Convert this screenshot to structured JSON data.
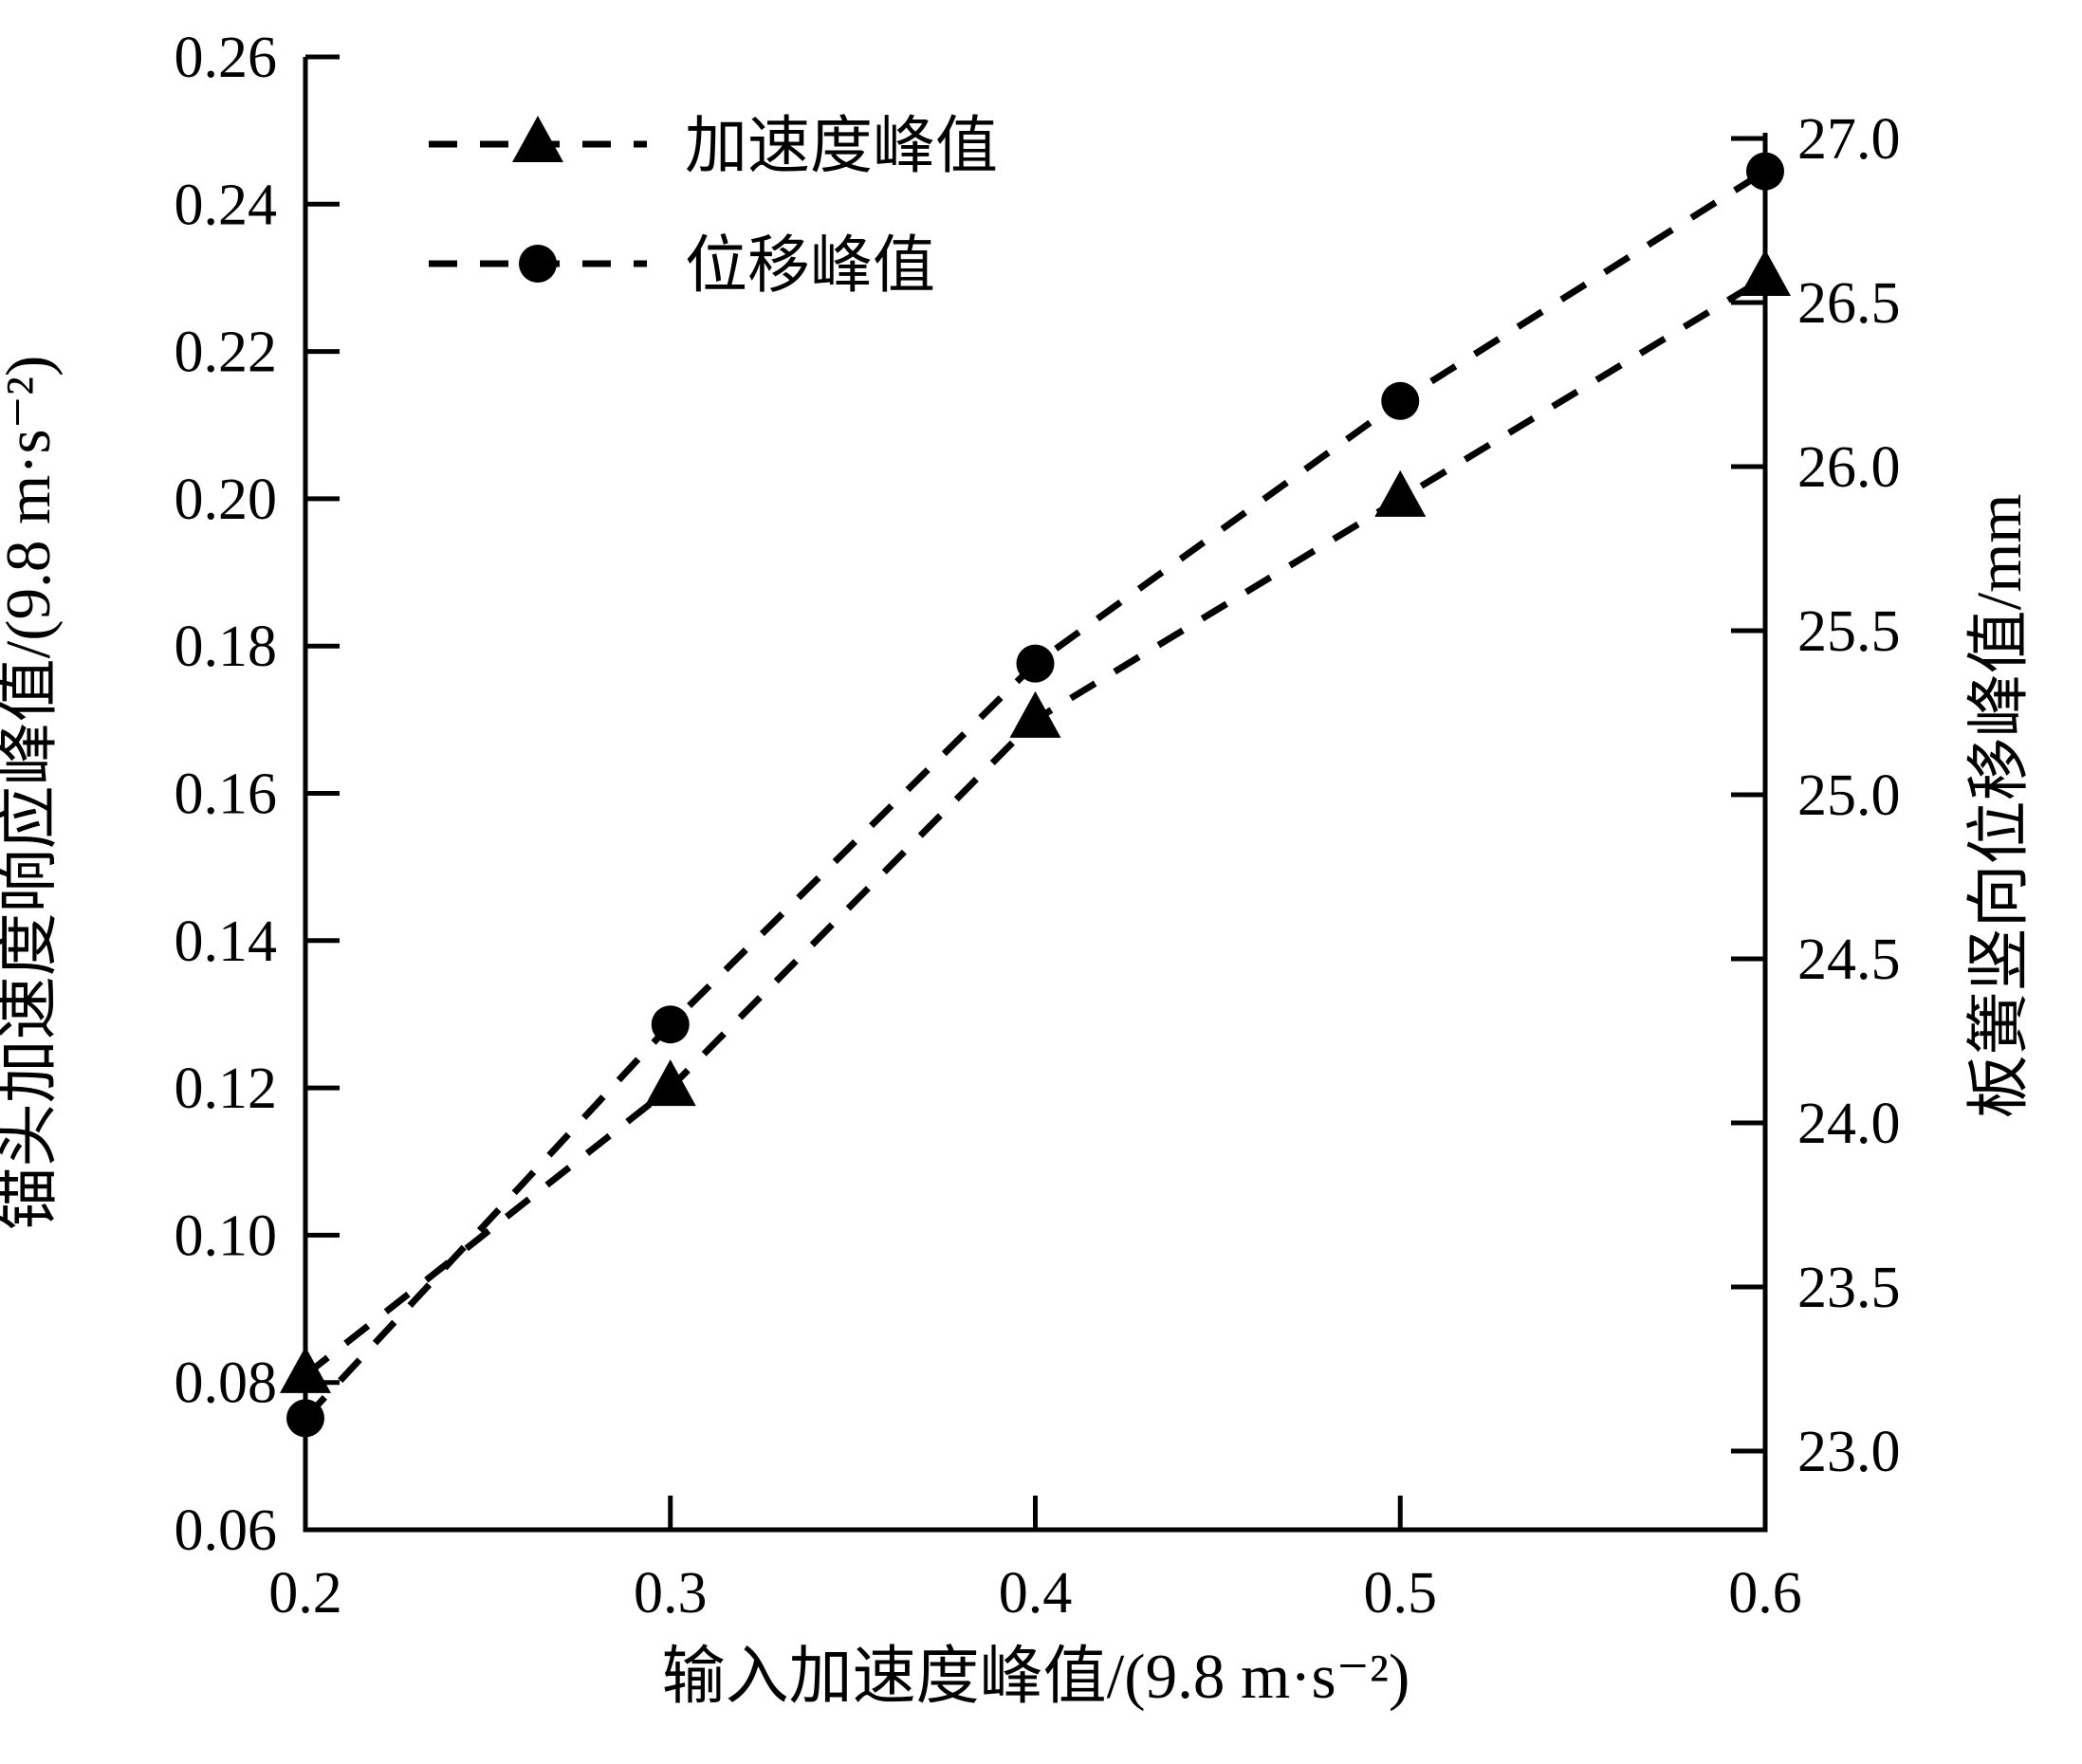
{
  "figure": {
    "background": "#ffffff",
    "ink_color": "#000000"
  },
  "chart_data": {
    "type": "line",
    "x": [
      0.2,
      0.3,
      0.4,
      0.5,
      0.6
    ],
    "x_tick_labels": [
      "0.2",
      "0.3",
      "0.4",
      "0.5",
      "0.6"
    ],
    "xlabel": "输入加速度峰值/(9.8 m·s⁻²)",
    "left_axis": {
      "label": "锚头加速度响应峰值/(9.8 m·s⁻²)",
      "range": [
        0.06,
        0.26
      ],
      "tick_values": [
        0.06,
        0.08,
        0.1,
        0.12,
        0.14,
        0.16,
        0.18,
        0.2,
        0.22,
        0.24,
        0.26
      ],
      "tick_labels": [
        "0.06",
        "0.08",
        "0.10",
        "0.12",
        "0.14",
        "0.16",
        "0.18",
        "0.20",
        "0.22",
        "0.24",
        "0.26"
      ]
    },
    "right_axis": {
      "label": "板簧竖向位移峰值/mm",
      "top_value": 27.0,
      "bottom_value": 23.0,
      "tick_values": [
        23.0,
        23.5,
        24.0,
        24.5,
        25.0,
        25.5,
        26.0,
        26.5,
        27.0
      ],
      "tick_labels": [
        "23.0",
        "23.5",
        "24.0",
        "24.5",
        "25.0",
        "25.5",
        "26.0",
        "26.5",
        "27.0"
      ]
    },
    "series": [
      {
        "name": "加速度峰值",
        "axis": "left",
        "marker": "triangle",
        "linestyle": "dashed",
        "color": "#000000",
        "values": [
          0.081,
          0.12,
          0.17,
          0.2,
          0.23
        ]
      },
      {
        "name": "位移峰值",
        "axis": "right",
        "marker": "circle",
        "linestyle": "dashed",
        "color": "#000000",
        "values": [
          23.1,
          24.3,
          25.4,
          26.2,
          26.9
        ]
      }
    ],
    "legend": {
      "position": "upper-left",
      "entries": [
        "加速度峰值",
        "位移峰值"
      ]
    },
    "grid": false
  }
}
